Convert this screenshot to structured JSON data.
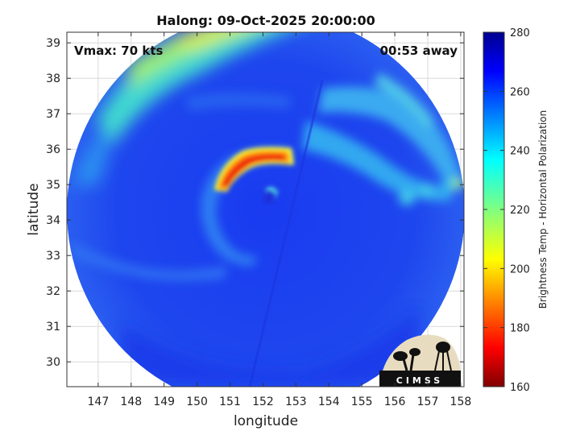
{
  "chart_data": {
    "type": "heatmap",
    "title": "Halong: 09-Oct-2025 20:00:00",
    "xlabel": "longitude",
    "ylabel": "latitude",
    "xlim": [
      146.05,
      158.1
    ],
    "ylim": [
      29.3,
      39.3
    ],
    "xticks": [
      "147",
      "148",
      "149",
      "150",
      "151",
      "152",
      "153",
      "154",
      "155",
      "156",
      "157",
      "158"
    ],
    "yticks": [
      "30",
      "31",
      "32",
      "33",
      "34",
      "35",
      "36",
      "37",
      "38",
      "39"
    ],
    "grid": true,
    "annotations": {
      "vmax": "Vmax: 70 kts",
      "time_away": "00:53 away"
    },
    "colorbar": {
      "label": "Brightness Temp - Horizontal Polarization",
      "range": [
        160,
        280
      ],
      "ticks": [
        "160",
        "180",
        "200",
        "220",
        "240",
        "260",
        "280"
      ],
      "colormap": "jet"
    },
    "features": {
      "swath_center": [
        152.15,
        34.3
      ],
      "swath_radius_deg": 6.0,
      "eye_center": [
        152.3,
        34.45
      ],
      "rainband_peak_min_tb": 175,
      "background_tb": 262
    },
    "logo_text": "CIMSS"
  }
}
